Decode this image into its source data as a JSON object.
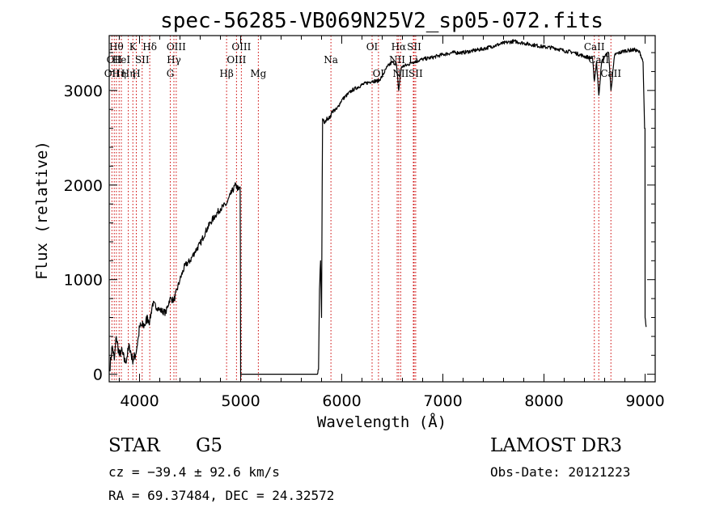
{
  "chart_data": {
    "type": "line",
    "title": "spec-56285-VB069N25V2_sp05-072.fits",
    "xlabel": "Wavelength (Å)",
    "ylabel": "Flux (relative)",
    "xlim": [
      3700,
      9100
    ],
    "ylim": [
      -80,
      3580
    ],
    "x_ticks": [
      4000,
      5000,
      6000,
      7000,
      8000,
      9000
    ],
    "y_ticks": [
      0,
      1000,
      2000,
      3000
    ],
    "line_color": "#000000",
    "marker_color": "#cc0000",
    "spectrum_anchors": [
      [
        3705,
        50
      ],
      [
        3730,
        300
      ],
      [
        3750,
        150
      ],
      [
        3770,
        400
      ],
      [
        3800,
        200
      ],
      [
        3820,
        250
      ],
      [
        3860,
        120
      ],
      [
        3900,
        300
      ],
      [
        3930,
        150
      ],
      [
        3960,
        200
      ],
      [
        3990,
        400
      ],
      [
        4000,
        500
      ],
      [
        4050,
        520
      ],
      [
        4080,
        600
      ],
      [
        4101,
        560
      ],
      [
        4130,
        750
      ],
      [
        4180,
        700
      ],
      [
        4200,
        680
      ],
      [
        4260,
        650
      ],
      [
        4300,
        800
      ],
      [
        4340,
        780
      ],
      [
        4400,
        1000
      ],
      [
        4450,
        1150
      ],
      [
        4500,
        1200
      ],
      [
        4550,
        1300
      ],
      [
        4600,
        1380
      ],
      [
        4650,
        1500
      ],
      [
        4700,
        1600
      ],
      [
        4750,
        1680
      ],
      [
        4800,
        1750
      ],
      [
        4861,
        1800
      ],
      [
        4900,
        1900
      ],
      [
        4950,
        2000
      ],
      [
        4980,
        1950
      ],
      [
        4995,
        1980
      ],
      [
        5000,
        0
      ],
      [
        5760,
        0
      ],
      [
        5770,
        50
      ],
      [
        5780,
        900
      ],
      [
        5790,
        1200
      ],
      [
        5800,
        600
      ],
      [
        5810,
        2700
      ],
      [
        5830,
        2650
      ],
      [
        5850,
        2700
      ],
      [
        5893,
        2720
      ],
      [
        5900,
        2780
      ],
      [
        5950,
        2800
      ],
      [
        6000,
        2900
      ],
      [
        6100,
        3000
      ],
      [
        6200,
        3060
      ],
      [
        6300,
        3100
      ],
      [
        6363,
        3100
      ],
      [
        6400,
        3150
      ],
      [
        6450,
        3250
      ],
      [
        6500,
        3300
      ],
      [
        6540,
        3280
      ],
      [
        6563,
        3000
      ],
      [
        6590,
        3250
      ],
      [
        6650,
        3270
      ],
      [
        6700,
        3300
      ],
      [
        6800,
        3330
      ],
      [
        6900,
        3350
      ],
      [
        7000,
        3380
      ],
      [
        7100,
        3400
      ],
      [
        7200,
        3400
      ],
      [
        7300,
        3420
      ],
      [
        7400,
        3440
      ],
      [
        7500,
        3470
      ],
      [
        7600,
        3500
      ],
      [
        7700,
        3520
      ],
      [
        7800,
        3500
      ],
      [
        7900,
        3480
      ],
      [
        8000,
        3460
      ],
      [
        8100,
        3450
      ],
      [
        8200,
        3420
      ],
      [
        8300,
        3400
      ],
      [
        8400,
        3360
      ],
      [
        8480,
        3340
      ],
      [
        8498,
        3100
      ],
      [
        8520,
        3300
      ],
      [
        8542,
        2950
      ],
      [
        8570,
        3300
      ],
      [
        8600,
        3360
      ],
      [
        8640,
        3400
      ],
      [
        8662,
        3000
      ],
      [
        8700,
        3380
      ],
      [
        8800,
        3420
      ],
      [
        8900,
        3430
      ],
      [
        8950,
        3400
      ],
      [
        8980,
        3300
      ],
      [
        8995,
        2600
      ],
      [
        8999,
        2600
      ],
      [
        9000,
        600
      ],
      [
        9010,
        500
      ]
    ],
    "line_markers": [
      {
        "wavelength": 3727,
        "label": "OII",
        "row": 2
      },
      {
        "wavelength": 3750,
        "label": "OII",
        "row": 1
      },
      {
        "wavelength": 3771,
        "label": "Hθ",
        "row": 0
      },
      {
        "wavelength": 3798,
        "label": "Hη",
        "row": 2
      },
      {
        "wavelength": 3820,
        "label": "HeI",
        "row": 1
      },
      {
        "wavelength": 3889,
        "label": "Hη",
        "row": 2
      },
      {
        "wavelength": 3934,
        "label": "K",
        "row": 0
      },
      {
        "wavelength": 3968,
        "label": "H",
        "row": 2
      },
      {
        "wavelength": 4026,
        "label": "SII",
        "row": 1
      },
      {
        "wavelength": 4101,
        "label": "Hδ",
        "row": 0
      },
      {
        "wavelength": 4304,
        "label": "G",
        "row": 2
      },
      {
        "wavelength": 4340,
        "label": "Hγ",
        "row": 1
      },
      {
        "wavelength": 4363,
        "label": "OIII",
        "row": 0
      },
      {
        "wavelength": 4861,
        "label": "Hβ",
        "row": 2
      },
      {
        "wavelength": 4959,
        "label": "OIII",
        "row": 1
      },
      {
        "wavelength": 5007,
        "label": "OIII",
        "row": 0
      },
      {
        "wavelength": 5175,
        "label": "Mg",
        "row": 2
      },
      {
        "wavelength": 5893,
        "label": "Na",
        "row": 1
      },
      {
        "wavelength": 6300,
        "label": "OI",
        "row": 0
      },
      {
        "wavelength": 6363,
        "label": "OI",
        "row": 2
      },
      {
        "wavelength": 6548,
        "label": "NII",
        "row": 1
      },
      {
        "wavelength": 6563,
        "label": "Hα",
        "row": 0
      },
      {
        "wavelength": 6583,
        "label": "NII",
        "row": 2
      },
      {
        "wavelength": 6708,
        "label": "Li",
        "row": 1
      },
      {
        "wavelength": 6716,
        "label": "SII",
        "row": 0
      },
      {
        "wavelength": 6731,
        "label": "SII",
        "row": 2
      },
      {
        "wavelength": 8498,
        "label": "CaII",
        "row": 0
      },
      {
        "wavelength": 8542,
        "label": "CaII",
        "row": 1
      },
      {
        "wavelength": 8662,
        "label": "CaII",
        "row": 2
      }
    ]
  },
  "info": {
    "class_label": "STAR",
    "subclass": "G5",
    "survey": "LAMOST DR3",
    "velocity": "cz = −39.4 ± 92.6 km/s",
    "obs_date": "Obs-Date: 20121223",
    "coords": "RA =  69.37484, DEC =  24.32572"
  }
}
